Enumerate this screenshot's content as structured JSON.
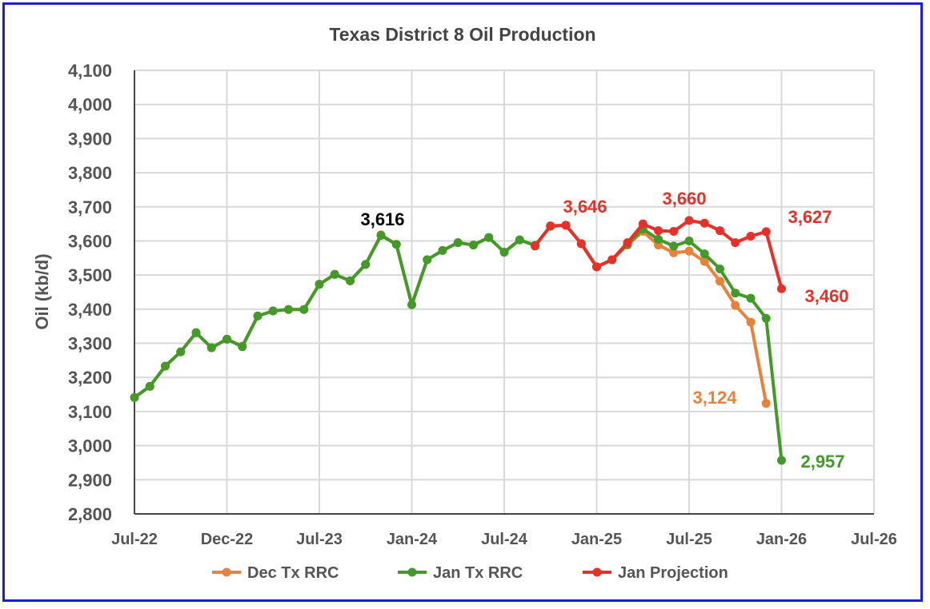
{
  "chart_data": {
    "type": "line",
    "title": "Texas District 8 Oil Production",
    "ylabel": "Oil (kb/d)",
    "xlabel": "",
    "ylim": [
      2800,
      4100
    ],
    "yticks": [
      "2,800",
      "2,900",
      "3,000",
      "3,100",
      "3,200",
      "3,300",
      "3,400",
      "3,500",
      "3,600",
      "3,700",
      "3,800",
      "3,900",
      "4,000",
      "4,100"
    ],
    "xticks": [
      "Jul-22",
      "Dec-22",
      "Jul-23",
      "Jan-24",
      "Jul-24",
      "Jan-25",
      "Jul-25",
      "Jan-26",
      "Jul-26"
    ],
    "grid": true,
    "legend": "bottom",
    "series": [
      {
        "name": "Dec Tx RRC",
        "color": "#e8823a",
        "start": "Jul-22",
        "values": [
          3141,
          3174,
          3233,
          3275,
          3331,
          3287,
          3312,
          3292,
          3380,
          3395,
          3399,
          3399,
          3473,
          3502,
          3483,
          3531,
          3618,
          3590,
          3413,
          3545,
          3572,
          3595,
          3588,
          3610,
          3567,
          3603,
          3587,
          3643,
          3646,
          3592,
          3524,
          3545,
          3588,
          3628,
          3588,
          3565,
          3570,
          3540,
          3482,
          3411,
          3362,
          3124
        ]
      },
      {
        "name": "Jan Tx RRC",
        "color": "#43992a",
        "start": "Jul-22",
        "values": [
          3141,
          3174,
          3233,
          3275,
          3331,
          3287,
          3312,
          3290,
          3380,
          3395,
          3399,
          3399,
          3473,
          3502,
          3483,
          3531,
          3616,
          3590,
          3413,
          3545,
          3572,
          3595,
          3588,
          3610,
          3567,
          3603,
          3587,
          3643,
          3646,
          3592,
          3524,
          3545,
          3590,
          3635,
          3605,
          3585,
          3600,
          3562,
          3518,
          3447,
          3432,
          3373,
          2957
        ]
      },
      {
        "name": "Jan Projection",
        "color": "#e8302a",
        "start": "Sep-24",
        "values": [
          3585,
          3644,
          3646,
          3592,
          3524,
          3545,
          3595,
          3650,
          3630,
          3628,
          3660,
          3652,
          3630,
          3595,
          3614,
          3627,
          3460
        ]
      }
    ],
    "annotations": [
      {
        "text": "3,616",
        "color": "#000000"
      },
      {
        "text": "3,646",
        "color": "#e8302a"
      },
      {
        "text": "3,660",
        "color": "#e8302a"
      },
      {
        "text": "3,627",
        "color": "#e8302a"
      },
      {
        "text": "3,460",
        "color": "#e8302a"
      },
      {
        "text": "3,124",
        "color": "#e8823a"
      },
      {
        "text": "2,957",
        "color": "#43992a"
      }
    ]
  }
}
